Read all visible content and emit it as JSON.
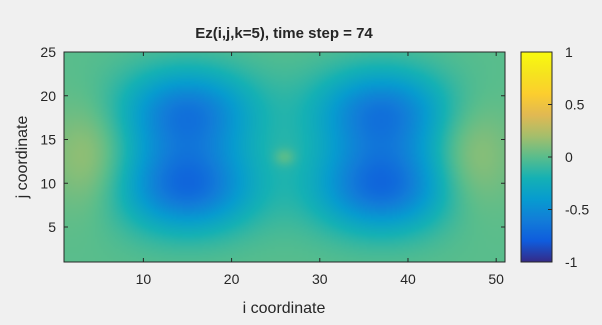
{
  "chart_data": {
    "type": "heatmap",
    "title": "Ez(i,j,k=5), time step = 74",
    "xlabel": "i coordinate",
    "ylabel": "j coordinate",
    "xlim": [
      1,
      51
    ],
    "ylim": [
      1,
      25
    ],
    "x_ticks": [
      10,
      20,
      30,
      40,
      50
    ],
    "y_ticks": [
      5,
      10,
      15,
      20,
      25
    ],
    "colorbar": {
      "limits": [
        -1,
        1
      ],
      "ticks": [
        1,
        0.5,
        0,
        -0.5,
        -1
      ],
      "tick_labels": [
        "1",
        "0.5",
        "0",
        "-0.5",
        "-1"
      ],
      "colormap": "parula"
    },
    "field": {
      "description_of_values": "Ez field value at grid (i,j)",
      "pattern": "cosine mode across i with dark-blue lobes centered near i=15 and i=37 (min about -0.75), pale green lobes near i=4 and i=47 (about 0.2), small bright spot near i=26,j=13 (about 0.15); values taper toward 0 at the j boundaries",
      "samples": [
        {
          "i": 4,
          "j": 13,
          "value": 0.2
        },
        {
          "i": 15,
          "j": 9,
          "value": -0.75
        },
        {
          "i": 15,
          "j": 19,
          "value": -0.75
        },
        {
          "i": 26,
          "j": 13,
          "value": 0.15
        },
        {
          "i": 37,
          "j": 9,
          "value": -0.75
        },
        {
          "i": 37,
          "j": 19,
          "value": -0.75
        },
        {
          "i": 47,
          "j": 13,
          "value": 0.2
        }
      ]
    },
    "grid": false
  }
}
